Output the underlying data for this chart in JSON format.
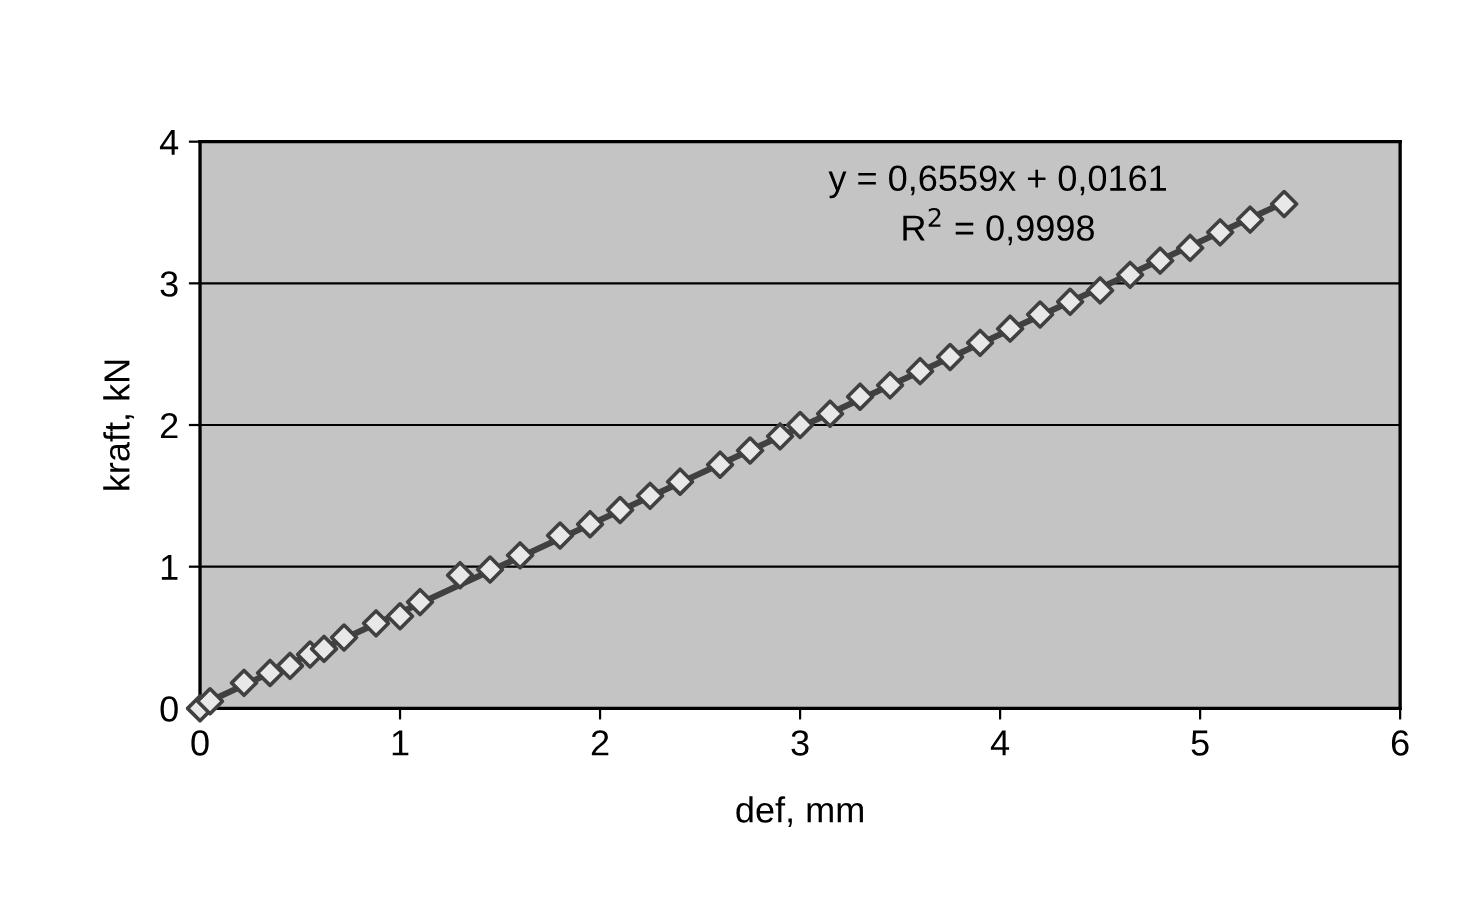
{
  "chart_data": {
    "type": "scatter",
    "xlabel": "def, mm",
    "ylabel": "kraft, kN",
    "xlim": [
      0,
      6
    ],
    "ylim": [
      0,
      4
    ],
    "xticks": [
      0,
      1,
      2,
      3,
      4,
      5,
      6
    ],
    "yticks": [
      0,
      1,
      2,
      3,
      4
    ],
    "grid": "y",
    "legend": false,
    "annotations": [
      "y = 0,6559x + 0,0161",
      "R$^{2}$ = 0,9998"
    ],
    "series": [
      {
        "marker": "diamond",
        "color": "#404040",
        "x": [
          0,
          0.05,
          0.22,
          0.35,
          0.45,
          0.55,
          0.62,
          0.72,
          0.88,
          1.0,
          1.1,
          1.3,
          1.45,
          1.6,
          1.8,
          1.95,
          2.1,
          2.25,
          2.4,
          2.6,
          2.75,
          2.9,
          3.0,
          3.15,
          3.3,
          3.45,
          3.6,
          3.75,
          3.9,
          4.05,
          4.2,
          4.35,
          4.5,
          4.65,
          4.8,
          4.95,
          5.1,
          5.25,
          5.42
        ],
        "values": [
          0,
          0.05,
          0.18,
          0.25,
          0.3,
          0.38,
          0.42,
          0.5,
          0.6,
          0.65,
          0.75,
          0.94,
          0.98,
          1.08,
          1.22,
          1.3,
          1.4,
          1.5,
          1.6,
          1.72,
          1.82,
          1.92,
          2.0,
          2.08,
          2.2,
          2.28,
          2.38,
          2.48,
          2.58,
          2.68,
          2.78,
          2.87,
          2.95,
          3.06,
          3.16,
          3.25,
          3.36,
          3.45,
          3.56
        ]
      },
      {
        "type": "line",
        "marker": "none",
        "line_style": "solid",
        "color": "#404040",
        "x": [
          0,
          5.42
        ],
        "values": [
          0.02,
          3.57
        ]
      }
    ]
  }
}
